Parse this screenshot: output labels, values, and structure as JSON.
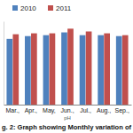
{
  "chart_data": {
    "type": "bar",
    "title": "g. 2: Graph showing Monthly variation of",
    "xlabel": "pH",
    "categories": [
      "Mar.,",
      "Apr.,",
      "May,",
      "Jun.,",
      "Jul.,",
      "Aug.,",
      "Sep.,"
    ],
    "series": [
      {
        "name": "2010",
        "color": "#4f81bd",
        "values": [
          7.1,
          7.4,
          7.5,
          7.8,
          7.5,
          7.5,
          7.4
        ]
      },
      {
        "name": "2011",
        "color": "#c0504d",
        "values": [
          7.6,
          7.7,
          7.7,
          8.2,
          7.9,
          7.7,
          7.5
        ]
      }
    ],
    "ylim": [
      0,
      9
    ],
    "tick_labels": "x",
    "legend": "top",
    "grid": false
  }
}
